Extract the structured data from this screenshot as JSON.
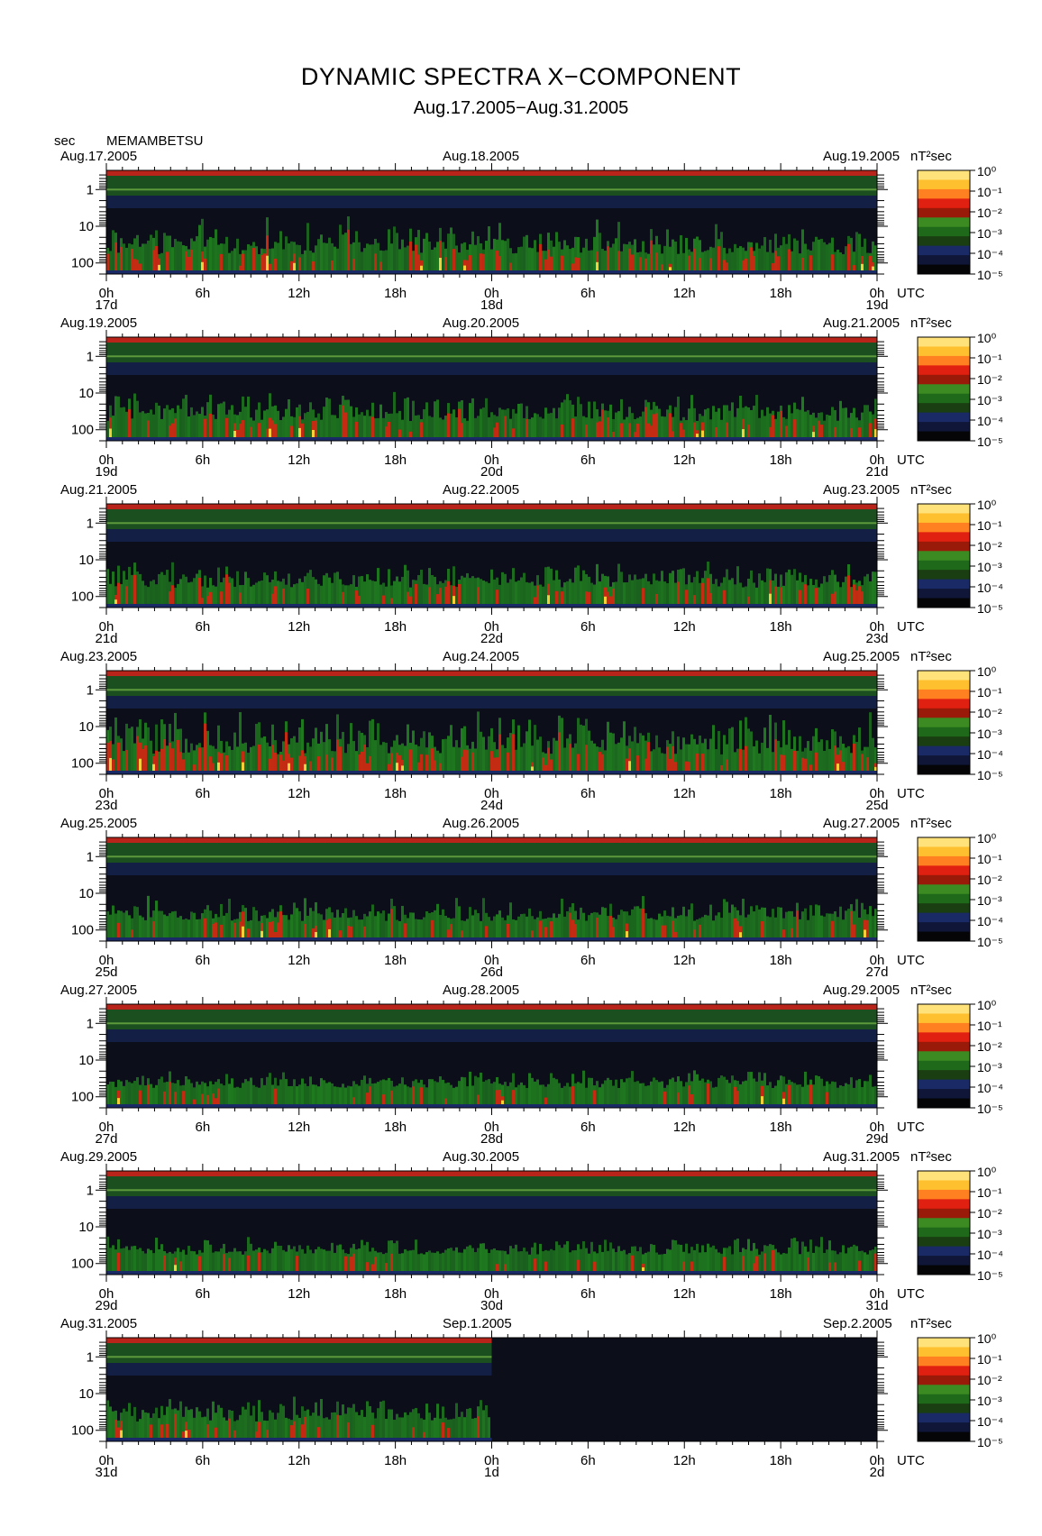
{
  "title": "DYNAMIC SPECTRA X−COMPONENT",
  "subtitle": "Aug.17.2005−Aug.31.2005",
  "unit_label": "sec",
  "station": "MEMAMBETSU",
  "colorbar_unit": "nT²sec",
  "colorbar_ticks": [
    "10⁰",
    "10⁻¹",
    "10⁻²",
    "10⁻³",
    "10⁻⁴",
    "10⁻⁵"
  ],
  "y_ticks": [
    "1",
    "10",
    "100"
  ],
  "utc_label": "UTC",
  "chart_data": {
    "type": "heatmap",
    "title": "DYNAMIC SPECTRA X−COMPONENT",
    "subtitle": "Aug.17.2005−Aug.31.2005",
    "ylabel": "sec",
    "y_scale": "log",
    "y_ticks": [
      1,
      10,
      100
    ],
    "x_tick_labels": [
      "0h",
      "6h",
      "12h",
      "18h",
      "0h",
      "6h",
      "12h",
      "18h",
      "0h"
    ],
    "colorbar": {
      "label": "nT²sec",
      "scale": "log",
      "range": [
        1e-05,
        1
      ]
    },
    "colors": {
      "background": "#0c0e1a",
      "low": "#1a2a66",
      "mid": "#1f7a1f",
      "high": "#e02010",
      "peak": "#ffe040"
    },
    "panels": [
      {
        "left": "Aug.17.2005",
        "mid": "Aug.18.2005",
        "right": "Aug.19.2005",
        "d0": "17d",
        "d1": "18d",
        "d2": "19d",
        "activity": 0.7,
        "data_until": 1
      },
      {
        "left": "Aug.19.2005",
        "mid": "Aug.20.2005",
        "right": "Aug.21.2005",
        "d0": "19d",
        "d1": "20d",
        "d2": "21d",
        "activity": 0.55,
        "data_until": 1
      },
      {
        "left": "Aug.21.2005",
        "mid": "Aug.22.2005",
        "right": "Aug.23.2005",
        "d0": "21d",
        "d1": "22d",
        "d2": "23d",
        "activity": 0.5,
        "data_until": 1
      },
      {
        "left": "Aug.23.2005",
        "mid": "Aug.24.2005",
        "right": "Aug.25.2005",
        "d0": "23d",
        "d1": "24d",
        "d2": "25d",
        "activity": 0.85,
        "data_until": 1
      },
      {
        "left": "Aug.25.2005",
        "mid": "Aug.26.2005",
        "right": "Aug.27.2005",
        "d0": "25d",
        "d1": "26d",
        "d2": "27d",
        "activity": 0.5,
        "data_until": 1
      },
      {
        "left": "Aug.27.2005",
        "mid": "Aug.28.2005",
        "right": "Aug.29.2005",
        "d0": "27d",
        "d1": "28d",
        "d2": "29d",
        "activity": 0.35,
        "data_until": 1
      },
      {
        "left": "Aug.29.2005",
        "mid": "Aug.30.2005",
        "right": "Aug.31.2005",
        "d0": "29d",
        "d1": "30d",
        "d2": "31d",
        "activity": 0.35,
        "data_until": 1
      },
      {
        "left": "Aug.31.2005",
        "mid": "Sep.1.2005",
        "right": "Sep.2.2005",
        "d0": "31d",
        "d1": "1d",
        "d2": "2d",
        "activity": 0.5,
        "data_until": 0.5
      }
    ]
  }
}
